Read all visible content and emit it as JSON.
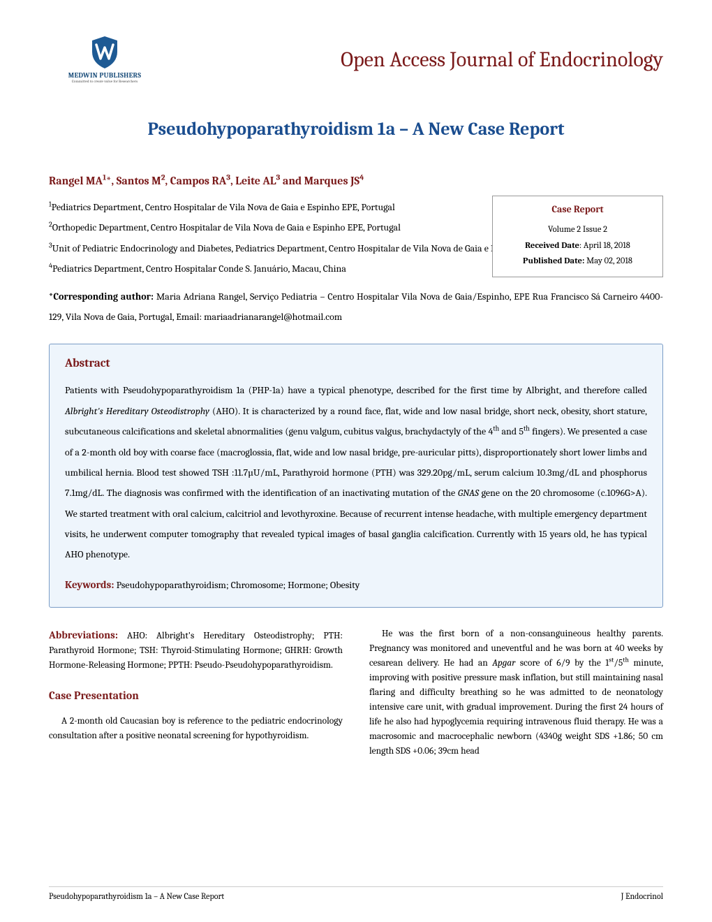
{
  "colors": {
    "brand_red": "#7a1a1a",
    "brand_blue": "#1a4d8f",
    "logo_blue": "#1a4d7a",
    "abstract_bg": "#eef5fc",
    "abstract_border": "#7a9cc6",
    "box_border": "#999999",
    "text": "#000000"
  },
  "logo": {
    "publisher": "MEDWIN PUBLISHERS",
    "tagline": "Committed to create value for Researchers",
    "shield_blue": "#1e5a94",
    "shield_stripe": "#ffffff"
  },
  "journal_title": "Open Access Journal of Endocrinology",
  "article_title": "Pseudohypoparathyroidism 1a – A New Case Report",
  "authors_html": "Rangel MA<sup>1</sup>*, Santos M<sup>2</sup>, Campos RA<sup>3</sup>, Leite AL<sup>3</sup> and Marques JS<sup>4</sup>",
  "affiliations": {
    "a1": "<sup>1</sup>Pediatrics Department, Centro Hospitalar de Vila Nova de Gaia e Espinho EPE, Portugal",
    "a2": "<sup>2</sup>Orthopedic Department, Centro Hospitalar de Vila Nova de Gaia e Espinho EPE, Portugal",
    "a3": "<sup>3</sup>Unit of Pediatric Endocrinology and Diabetes, Pediatrics Department, Centro Hospitalar de Vila Nova de Gaia e Espinho EPE, Portugal",
    "a4": "<sup>4</sup>Pediatrics Department, Centro Hospitalar Conde S. Januário, Macau, China"
  },
  "info_box": {
    "title": "Case Report",
    "volume": "Volume 2 Issue 2",
    "received_label": "Received Date",
    "received_value": ":  April 18, 2018",
    "published_label": "Published Date:",
    "published_value": " May 02, 2018"
  },
  "corresponding": "<b>*Corresponding author:</b> Maria Adriana Rangel, Serviço Pediatria – Centro Hospitalar Vila Nova de Gaia/Espinho, EPE Rua Francisco Sá Carneiro 4400-129, Vila Nova de Gaia, Portugal, Email: mariaadrianarangel@hotmail.com",
  "abstract": {
    "title": "Abstract",
    "text": "Patients with Pseudohypoparathyroidism 1a (PHP-1a) have a typical phenotype, described for the first time by Albright, and therefore called <i>Albright's Hereditary Osteodistrophy</i> (AHO). It is characterized by a round face, flat, wide and low nasal bridge, short neck, obesity, short stature, subcutaneous calcifications and skeletal abnormalities (genu valgum, cubitus valgus, brachydactyly of the 4<sup>th</sup> and 5<sup>th</sup> fingers). We presented a case of a 2-month old boy with coarse face (macroglossia, flat, wide and low nasal bridge, pre-auricular pitts), disproportionately short lower limbs and umbilical hernia. Blood test showed TSH :11.7µU/mL, Parathyroid hormone (PTH) was 329.20pg/mL, serum calcium 10.3mg/dL and phosphorus 7.1mg/dL. The diagnosis was confirmed with the identification of an inactivating mutation of the <i>GNAS</i> gene on the 20 chromosome (c.1096G>A). We started treatment with oral calcium, calcitriol and levothyroxine. Because of recurrent intense headache, with multiple emergency department visits, he underwent computer tomography that revealed typical images of basal ganglia calcification. Currently with 15 years old, he has typical AHO phenotype.",
    "keywords_label": "Keywords:",
    "keywords_text": " Pseudohypoparathyroidism; Chromosome; Hormone; Obesity"
  },
  "body": {
    "abbreviations_label": "Abbreviations:",
    "abbreviations_text": " AHO: Albright's Hereditary Osteodistrophy; PTH: Parathyroid Hormone; TSH: Thyroid-Stimulating Hormone; GHRH: Growth Hormone-Releasing Hormone; PPTH: Pseudo-Pseudohypoparathyroidism.",
    "case_heading": "Case Presentation",
    "case_p1": "A 2-month old Caucasian boy is reference to the pediatric endocrinology consultation after a positive neonatal screening for hypothyroidism.",
    "case_p2": "He was the first born of a non-consanguineous healthy parents. Pregnancy was monitored and uneventful and he was born at 40 weeks by cesarean delivery. He had an <i>Apgar</i> score of 6/9 by the 1<sup>st</sup>/5<sup>th</sup> minute, improving with positive pressure mask inflation, but still maintaining nasal flaring and difficulty breathing so he was admitted to de neonatology intensive care unit, with gradual improvement. During the first 24 hours of life he also had hypoglycemia requiring intravenous fluid therapy. He was a macrosomic and macrocephalic newborn (4340g weight SDS +1.86; 50 cm length SDS +0.06; 39cm head"
  },
  "footer": {
    "left": "Pseudohypoparathyroidism 1a – A New Case Report",
    "right": "J Endocrinol"
  }
}
